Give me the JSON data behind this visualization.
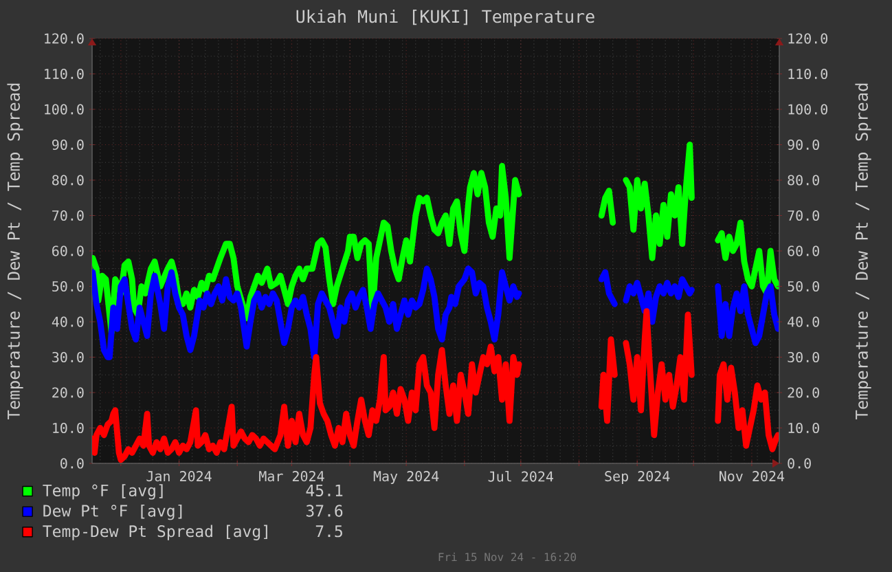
{
  "chart_data": {
    "type": "line",
    "title": "Ukiah Muni [KUKI] Temperature",
    "ylabel": "Temperature / Dew Pt / Temp Spread",
    "y2label": "Temperature / Dew Pt / Temp Spread",
    "xlim": [
      "2023-11-15T16:20",
      "2024-11-15T16:20"
    ],
    "xticks": [
      {
        "value": "2023-12-01",
        "label": null
      },
      {
        "value": "2024-01-01",
        "label": "Jan 2024"
      },
      {
        "value": "2024-02-01",
        "label": null
      },
      {
        "value": "2024-03-01",
        "label": "Mar 2024"
      },
      {
        "value": "2024-04-01",
        "label": null
      },
      {
        "value": "2024-05-01",
        "label": "May 2024"
      },
      {
        "value": "2024-06-01",
        "label": null
      },
      {
        "value": "2024-07-01",
        "label": "Jul 2024"
      },
      {
        "value": "2024-08-01",
        "label": null
      },
      {
        "value": "2024-09-01",
        "label": "Sep 2024"
      },
      {
        "value": "2024-10-01",
        "label": null
      },
      {
        "value": "2024-11-01",
        "label": "Nov 2024"
      }
    ],
    "ylim": [
      0,
      120
    ],
    "yticks": [
      {
        "value": 0,
        "label": "0.0"
      },
      {
        "value": 10,
        "label": "10.0"
      },
      {
        "value": 20,
        "label": "20.0"
      },
      {
        "value": 30,
        "label": "30.0"
      },
      {
        "value": 40,
        "label": "40.0"
      },
      {
        "value": 50,
        "label": "50.0"
      },
      {
        "value": 60,
        "label": "60.0"
      },
      {
        "value": 70,
        "label": "70.0"
      },
      {
        "value": 80,
        "label": "80.0"
      },
      {
        "value": 90,
        "label": "90.0"
      },
      {
        "value": 100,
        "label": "100.0"
      },
      {
        "value": 110,
        "label": "110.0"
      },
      {
        "value": 120,
        "label": "120.0"
      }
    ],
    "y2lim": [
      0,
      120
    ],
    "y2ticks": [
      {
        "value": 0,
        "label": "0.0"
      },
      {
        "value": 10,
        "label": "10.0"
      },
      {
        "value": 20,
        "label": "20.0"
      },
      {
        "value": 30,
        "label": "30.0"
      },
      {
        "value": 40,
        "label": "40.0"
      },
      {
        "value": 50,
        "label": "50.0"
      },
      {
        "value": 60,
        "label": "60.0"
      },
      {
        "value": 70,
        "label": "70.0"
      },
      {
        "value": 80,
        "label": "80.0"
      },
      {
        "value": 90,
        "label": "90.0"
      },
      {
        "value": 100,
        "label": "100.0"
      },
      {
        "value": 110,
        "label": "110.0"
      },
      {
        "value": 120,
        "label": "120.0"
      }
    ],
    "grid": true,
    "legend": "bottom left",
    "series": [
      {
        "name": "Temp °F [avg]",
        "color": "#00ff00",
        "x": [
          "2023-11-16",
          "2023-11-18",
          "2023-11-19",
          "2023-11-21",
          "2023-11-23",
          "2023-11-25",
          "2023-11-26",
          "2023-11-28",
          "2023-11-30",
          "2023-12-01",
          "2023-12-03",
          "2023-12-05",
          "2023-12-07",
          "2023-12-08",
          "2023-12-10",
          "2023-12-12",
          "2023-12-14",
          "2023-12-17",
          "2023-12-19",
          "2023-12-22",
          "2023-12-26",
          "2023-12-28",
          "2023-12-30",
          "2024-01-01",
          "2024-01-03",
          "2024-01-05",
          "2024-01-07",
          "2024-01-09",
          "2024-01-11",
          "2024-01-13",
          "2024-01-15",
          "2024-01-17",
          "2024-01-19",
          "2024-01-21",
          "2024-01-23",
          "2024-01-26",
          "2024-01-28",
          "2024-01-30",
          "2024-02-01",
          "2024-02-06",
          "2024-02-08",
          "2024-02-10",
          "2024-02-12",
          "2024-02-14",
          "2024-02-17",
          "2024-02-19",
          "2024-02-22",
          "2024-02-24",
          "2024-02-26",
          "2024-02-28",
          "2024-03-01",
          "2024-03-03",
          "2024-03-05",
          "2024-03-07",
          "2024-03-09",
          "2024-03-12",
          "2024-03-15",
          "2024-03-17",
          "2024-03-19",
          "2024-03-21",
          "2024-03-23",
          "2024-03-25",
          "2024-03-28",
          "2024-03-31",
          "2024-04-01",
          "2024-04-03",
          "2024-04-05",
          "2024-04-07",
          "2024-04-09",
          "2024-04-11",
          "2024-04-13",
          "2024-04-15",
          "2024-04-17",
          "2024-04-19",
          "2024-04-21",
          "2024-04-23",
          "2024-04-25",
          "2024-04-27",
          "2024-04-29",
          "2024-05-01",
          "2024-05-03",
          "2024-05-06",
          "2024-05-08",
          "2024-05-10",
          "2024-05-12",
          "2024-05-14",
          "2024-05-16",
          "2024-05-18",
          "2024-05-20",
          "2024-05-22",
          "2024-05-24",
          "2024-05-26",
          "2024-05-28",
          "2024-05-30",
          "2024-06-01",
          "2024-06-03",
          "2024-06-04",
          "2024-06-06",
          "2024-06-08",
          "2024-06-10",
          "2024-06-12",
          "2024-06-14",
          "2024-06-16",
          "2024-06-18",
          "2024-06-20",
          "2024-06-21",
          "2024-06-23",
          "2024-06-25",
          "2024-06-28",
          "2024-06-30",
          "2024-07-23",
          "2024-08-13",
          "2024-08-15",
          "2024-08-17",
          "2024-08-19",
          "2024-08-23",
          "2024-08-26",
          "2024-08-28",
          "2024-08-30",
          "2024-09-01",
          "2024-09-03",
          "2024-09-05",
          "2024-09-07",
          "2024-09-09",
          "2024-09-11",
          "2024-09-13",
          "2024-09-15",
          "2024-09-17",
          "2024-09-19",
          "2024-09-21",
          "2024-09-23",
          "2024-09-25",
          "2024-09-27",
          "2024-09-29",
          "2024-09-30",
          "2024-10-07",
          "2024-10-14",
          "2024-10-16",
          "2024-10-18",
          "2024-10-20",
          "2024-10-22",
          "2024-10-24",
          "2024-10-26",
          "2024-10-28",
          "2024-10-30",
          "2024-11-01",
          "2024-11-03",
          "2024-11-05",
          "2024-11-07",
          "2024-11-09",
          "2024-11-11",
          "2024-11-13",
          "2024-11-15"
        ],
        "values": [
          58,
          55,
          46,
          53,
          52,
          42,
          37,
          52,
          50,
          48,
          56,
          57,
          52,
          44,
          42,
          50,
          48,
          55,
          57,
          50,
          55,
          57,
          53,
          46,
          45,
          48,
          44,
          49,
          47,
          51,
          49,
          53,
          52,
          55,
          58,
          62,
          62,
          58,
          50,
          41,
          47,
          50,
          53,
          51,
          55,
          50,
          51,
          53,
          49,
          45,
          50,
          53,
          55,
          52,
          55,
          55,
          62,
          63,
          61,
          52,
          45,
          50,
          55,
          60,
          64,
          64,
          58,
          62,
          63,
          62,
          42,
          58,
          63,
          68,
          67,
          60,
          55,
          52,
          58,
          63,
          57,
          70,
          75,
          74,
          75,
          70,
          66,
          65,
          68,
          70,
          62,
          72,
          74,
          65,
          60,
          73,
          78,
          82,
          76,
          82,
          78,
          68,
          64,
          72,
          70,
          84,
          75,
          58,
          80,
          76,
          null,
          70,
          75,
          77,
          68,
          null,
          80,
          78,
          66,
          80,
          72,
          79,
          70,
          58,
          70,
          62,
          73,
          64,
          76,
          70,
          78,
          62,
          78,
          90,
          75,
          null,
          63,
          65,
          58,
          64,
          60,
          62,
          68,
          57,
          52,
          50,
          55,
          60,
          50,
          48,
          60,
          52,
          50
        ]
      },
      {
        "name": "Dew Pt °F [avg]",
        "color": "#0000ff",
        "x": [
          "2023-11-16",
          "2023-11-18",
          "2023-11-20",
          "2023-11-22",
          "2023-11-24",
          "2023-11-25",
          "2023-11-27",
          "2023-11-29",
          "2023-12-01",
          "2023-12-03",
          "2023-12-05",
          "2023-12-07",
          "2023-12-09",
          "2023-12-11",
          "2023-12-13",
          "2023-12-15",
          "2023-12-17",
          "2023-12-19",
          "2023-12-22",
          "2023-12-24",
          "2023-12-26",
          "2023-12-28",
          "2023-12-30",
          "2024-01-01",
          "2024-01-03",
          "2024-01-05",
          "2024-01-07",
          "2024-01-09",
          "2024-01-12",
          "2024-01-14",
          "2024-01-16",
          "2024-01-18",
          "2024-01-20",
          "2024-01-22",
          "2024-01-24",
          "2024-01-26",
          "2024-01-28",
          "2024-01-30",
          "2024-02-01",
          "2024-02-03",
          "2024-02-06",
          "2024-02-08",
          "2024-02-10",
          "2024-02-12",
          "2024-02-14",
          "2024-02-16",
          "2024-02-18",
          "2024-02-20",
          "2024-02-22",
          "2024-02-24",
          "2024-02-26",
          "2024-02-28",
          "2024-03-01",
          "2024-03-03",
          "2024-03-05",
          "2024-03-07",
          "2024-03-09",
          "2024-03-11",
          "2024-03-13",
          "2024-03-15",
          "2024-03-17",
          "2024-03-19",
          "2024-03-21",
          "2024-03-23",
          "2024-03-25",
          "2024-03-27",
          "2024-03-29",
          "2024-03-31",
          "2024-04-02",
          "2024-04-04",
          "2024-04-06",
          "2024-04-08",
          "2024-04-10",
          "2024-04-12",
          "2024-04-14",
          "2024-04-16",
          "2024-04-18",
          "2024-04-20",
          "2024-04-22",
          "2024-04-24",
          "2024-04-26",
          "2024-04-28",
          "2024-04-30",
          "2024-05-02",
          "2024-05-04",
          "2024-05-06",
          "2024-05-08",
          "2024-05-10",
          "2024-05-12",
          "2024-05-14",
          "2024-05-16",
          "2024-05-18",
          "2024-05-20",
          "2024-05-22",
          "2024-05-24",
          "2024-05-25",
          "2024-05-27",
          "2024-05-29",
          "2024-06-01",
          "2024-06-03",
          "2024-06-05",
          "2024-06-07",
          "2024-06-09",
          "2024-06-11",
          "2024-06-13",
          "2024-06-15",
          "2024-06-17",
          "2024-06-19",
          "2024-06-21",
          "2024-06-23",
          "2024-06-25",
          "2024-06-27",
          "2024-06-29",
          "2024-06-30",
          "2024-07-23",
          "2024-08-13",
          "2024-08-15",
          "2024-08-17",
          "2024-08-19",
          "2024-08-20",
          "2024-08-23",
          "2024-08-26",
          "2024-08-28",
          "2024-08-30",
          "2024-09-01",
          "2024-09-03",
          "2024-09-05",
          "2024-09-07",
          "2024-09-09",
          "2024-09-11",
          "2024-09-13",
          "2024-09-15",
          "2024-09-17",
          "2024-09-19",
          "2024-09-21",
          "2024-09-23",
          "2024-09-25",
          "2024-09-27",
          "2024-09-29",
          "2024-09-30",
          "2024-10-07",
          "2024-10-14",
          "2024-10-16",
          "2024-10-18",
          "2024-10-20",
          "2024-10-22",
          "2024-10-24",
          "2024-10-26",
          "2024-10-28",
          "2024-10-30",
          "2024-11-01",
          "2024-11-03",
          "2024-11-05",
          "2024-11-07",
          "2024-11-09",
          "2024-11-11",
          "2024-11-13",
          "2024-11-15"
        ],
        "values": [
          54,
          45,
          40,
          32,
          30,
          30,
          44,
          38,
          50,
          52,
          45,
          38,
          35,
          44,
          40,
          36,
          48,
          53,
          45,
          38,
          50,
          54,
          48,
          44,
          42,
          36,
          32,
          36,
          46,
          44,
          48,
          45,
          48,
          50,
          46,
          52,
          47,
          46,
          48,
          44,
          33,
          40,
          46,
          48,
          44,
          47,
          45,
          48,
          46,
          40,
          34,
          38,
          44,
          46,
          44,
          47,
          42,
          38,
          30,
          45,
          48,
          46,
          44,
          40,
          36,
          44,
          40,
          46,
          48,
          44,
          47,
          49,
          44,
          38,
          45,
          48,
          46,
          44,
          40,
          45,
          38,
          42,
          46,
          42,
          46,
          44,
          45,
          49,
          55,
          52,
          47,
          38,
          35,
          42,
          44,
          47,
          45,
          50,
          52,
          55,
          54,
          48,
          51,
          50,
          44,
          40,
          35,
          42,
          54,
          50,
          46,
          50,
          47,
          48,
          null,
          52,
          54,
          48,
          46,
          45,
          null,
          46,
          50,
          48,
          51,
          47,
          43,
          48,
          40,
          47,
          50,
          48,
          51,
          48,
          50,
          47,
          52,
          50,
          48,
          49,
          null,
          50,
          36,
          45,
          36,
          44,
          48,
          43,
          50,
          42,
          38,
          34,
          36,
          42,
          48,
          50,
          42,
          38
        ]
      },
      {
        "name": "Temp-Dew Pt Spread [avg]",
        "color": "#ff0000",
        "x": [
          "2023-11-16",
          "2023-11-17",
          "2023-11-18",
          "2023-11-20",
          "2023-11-22",
          "2023-11-24",
          "2023-11-26",
          "2023-11-27",
          "2023-11-28",
          "2023-11-30",
          "2023-12-01",
          "2023-12-03",
          "2023-12-05",
          "2023-12-07",
          "2023-12-09",
          "2023-12-11",
          "2023-12-13",
          "2023-12-15",
          "2023-12-16",
          "2023-12-18",
          "2023-12-20",
          "2023-12-22",
          "2023-12-24",
          "2023-12-26",
          "2023-12-28",
          "2023-12-30",
          "2024-01-01",
          "2024-01-03",
          "2024-01-05",
          "2024-01-07",
          "2024-01-10",
          "2024-01-11",
          "2024-01-13",
          "2024-01-15",
          "2024-01-17",
          "2024-01-19",
          "2024-01-21",
          "2024-01-23",
          "2024-01-25",
          "2024-01-29",
          "2024-01-30",
          "2024-02-01",
          "2024-02-03",
          "2024-02-05",
          "2024-02-07",
          "2024-02-09",
          "2024-02-11",
          "2024-02-13",
          "2024-02-15",
          "2024-02-17",
          "2024-02-19",
          "2024-02-21",
          "2024-02-24",
          "2024-02-26",
          "2024-02-28",
          "2024-03-01",
          "2024-03-03",
          "2024-03-05",
          "2024-03-07",
          "2024-03-09",
          "2024-03-11",
          "2024-03-13",
          "2024-03-14",
          "2024-03-16",
          "2024-03-18",
          "2024-03-20",
          "2024-03-22",
          "2024-03-24",
          "2024-03-26",
          "2024-03-28",
          "2024-03-30",
          "2024-04-01",
          "2024-04-03",
          "2024-04-05",
          "2024-04-07",
          "2024-04-09",
          "2024-04-11",
          "2024-04-13",
          "2024-04-15",
          "2024-04-17",
          "2024-04-19",
          "2024-04-20",
          "2024-04-22",
          "2024-04-24",
          "2024-04-26",
          "2024-04-28",
          "2024-04-30",
          "2024-05-02",
          "2024-05-04",
          "2024-05-06",
          "2024-05-08",
          "2024-05-10",
          "2024-05-12",
          "2024-05-14",
          "2024-05-16",
          "2024-05-18",
          "2024-05-20",
          "2024-05-22",
          "2024-05-24",
          "2024-05-26",
          "2024-05-28",
          "2024-05-30",
          "2024-06-01",
          "2024-06-03",
          "2024-06-05",
          "2024-06-07",
          "2024-06-09",
          "2024-06-11",
          "2024-06-13",
          "2024-06-15",
          "2024-06-17",
          "2024-06-19",
          "2024-06-21",
          "2024-06-23",
          "2024-06-25",
          "2024-06-27",
          "2024-06-29",
          "2024-06-30",
          "2024-07-23",
          "2024-08-13",
          "2024-08-14",
          "2024-08-16",
          "2024-08-18",
          "2024-08-20",
          "2024-08-23",
          "2024-08-26",
          "2024-08-28",
          "2024-08-30",
          "2024-09-01",
          "2024-09-03",
          "2024-09-05",
          "2024-09-06",
          "2024-09-08",
          "2024-09-10",
          "2024-09-12",
          "2024-09-14",
          "2024-09-16",
          "2024-09-18",
          "2024-09-20",
          "2024-09-22",
          "2024-09-24",
          "2024-09-26",
          "2024-09-28",
          "2024-09-30",
          "2024-10-07",
          "2024-10-14",
          "2024-10-15",
          "2024-10-17",
          "2024-10-19",
          "2024-10-21",
          "2024-10-23",
          "2024-10-25",
          "2024-10-27",
          "2024-10-29",
          "2024-10-31",
          "2024-11-02",
          "2024-11-04",
          "2024-11-06",
          "2024-11-08",
          "2024-11-10",
          "2024-11-12",
          "2024-11-14",
          "2024-11-15"
        ],
        "values": [
          7,
          3,
          8,
          10,
          8,
          11,
          12,
          14,
          15,
          3,
          1,
          2,
          4,
          3,
          5,
          7,
          5,
          14,
          5,
          3,
          6,
          4,
          7,
          3,
          4,
          6,
          3,
          5,
          4,
          6,
          15,
          5,
          6,
          8,
          4,
          5,
          3,
          6,
          4,
          16,
          5,
          7,
          9,
          7,
          6,
          8,
          7,
          5,
          7,
          6,
          5,
          4,
          8,
          16,
          5,
          12,
          6,
          14,
          8,
          6,
          10,
          25,
          30,
          17,
          14,
          12,
          8,
          5,
          10,
          6,
          14,
          8,
          5,
          12,
          18,
          12,
          8,
          15,
          12,
          18,
          30,
          15,
          16,
          20,
          14,
          21,
          18,
          12,
          20,
          15,
          28,
          30,
          22,
          20,
          10,
          25,
          32,
          22,
          14,
          22,
          12,
          25,
          20,
          14,
          28,
          20,
          25,
          30,
          28,
          33,
          26,
          30,
          18,
          28,
          12,
          30,
          25,
          28,
          null,
          16,
          25,
          12,
          35,
          25,
          null,
          34,
          28,
          18,
          30,
          15,
          35,
          43,
          25,
          8,
          20,
          28,
          18,
          25,
          16,
          22,
          30,
          18,
          42,
          25,
          null,
          12,
          25,
          28,
          18,
          27,
          20,
          10,
          15,
          5,
          10,
          15,
          22,
          18,
          20,
          8,
          4,
          7,
          8
        ]
      }
    ],
    "annotations": [
      "45.1",
      "37.6",
      "7.5",
      "Fri 15 Nov 24 - 16:20"
    ]
  }
}
